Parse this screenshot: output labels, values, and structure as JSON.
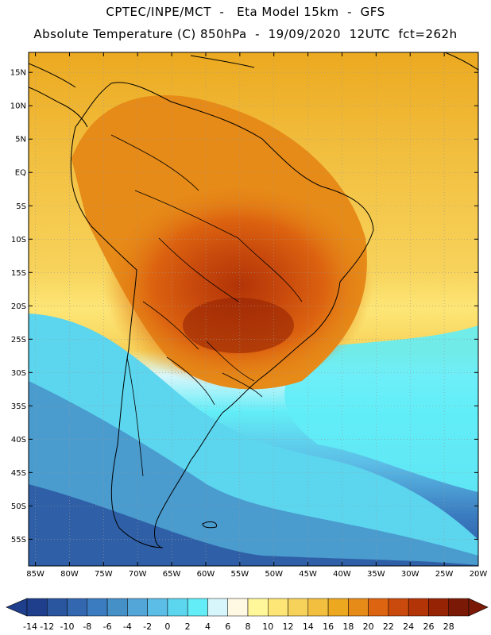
{
  "header": {
    "line1": "CPTEC/INPE/MCT  -   Eta Model 15km  -  GFS",
    "line2": "Absolute Temperature (C) 850hPa  -  19/09/2020  12UTC  fct=262h"
  },
  "axes": {
    "lat_labels": [
      "15N",
      "10N",
      "5N",
      "EQ",
      "5S",
      "10S",
      "15S",
      "20S",
      "25S",
      "30S",
      "35S",
      "40S",
      "45S",
      "50S",
      "55S"
    ],
    "lat_values": [
      15,
      10,
      5,
      0,
      -5,
      -10,
      -15,
      -20,
      -25,
      -30,
      -35,
      -40,
      -45,
      -50,
      -55
    ],
    "lon_labels": [
      "85W",
      "80W",
      "75W",
      "70W",
      "65W",
      "60W",
      "55W",
      "50W",
      "45W",
      "40W",
      "35W",
      "30W",
      "25W",
      "20W"
    ],
    "lon_values": [
      -85,
      -80,
      -75,
      -70,
      -65,
      -60,
      -55,
      -50,
      -45,
      -40,
      -35,
      -30,
      -25,
      -20
    ],
    "lon_range": [
      -86,
      -20
    ],
    "lat_range": [
      -59,
      18
    ]
  },
  "colorbar": {
    "labels": [
      "-14",
      "-12",
      "-10",
      "-8",
      "-6",
      "-4",
      "-2",
      "0",
      "2",
      "4",
      "6",
      "8",
      "10",
      "12",
      "14",
      "16",
      "18",
      "20",
      "22",
      "24",
      "26",
      "28"
    ],
    "colors": [
      "#1f3f8c",
      "#2a56a0",
      "#3367b0",
      "#3b7cc0",
      "#4690c8",
      "#52a6d8",
      "#5cbde6",
      "#5cd5ee",
      "#62edf7",
      "#d6f6fb",
      "#fff8e2",
      "#fff79a",
      "#fde676",
      "#f7d25a",
      "#f2bf3f",
      "#eca920",
      "#e68a18",
      "#dd6410",
      "#c94a0c",
      "#b23407",
      "#962304",
      "#7a1a06"
    ]
  },
  "colors": {
    "ocean_warm": "#f2b735",
    "ocean_cool": "#49c0e6",
    "ocean_cold": "#3a7fc4",
    "land_hot": "#d66a1a",
    "coastline": "#000000",
    "grid": "#9a9a9a"
  }
}
